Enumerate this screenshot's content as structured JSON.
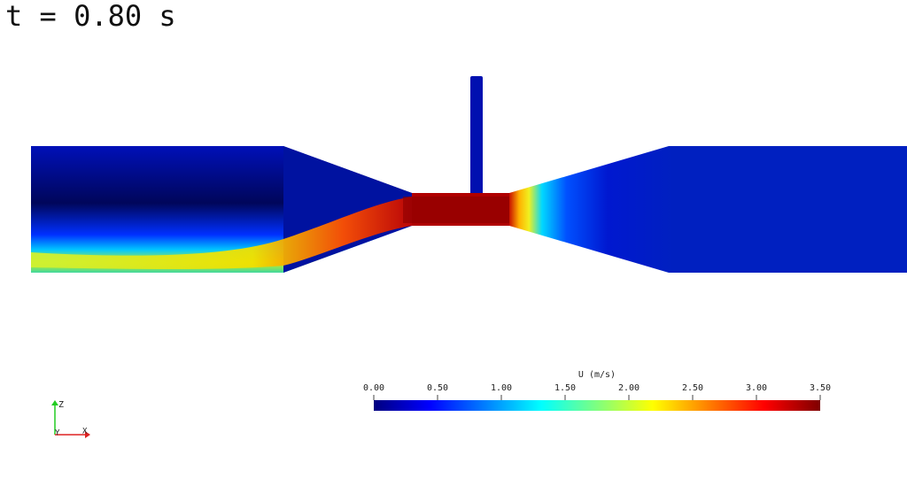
{
  "time_label": "t = 0.80 s",
  "colorbar": {
    "title": "U (m/s)",
    "lim": [
      0,
      3.5
    ],
    "ticks": [
      {
        "value": 0,
        "label": "0.00"
      },
      {
        "value": 0.5,
        "label": "0.50"
      },
      {
        "value": 1,
        "label": "1.00"
      },
      {
        "value": 1.5,
        "label": "1.50"
      },
      {
        "value": 2,
        "label": "2.00"
      },
      {
        "value": 2.5,
        "label": "2.50"
      },
      {
        "value": 3,
        "label": "3.00"
      },
      {
        "value": 3.5,
        "label": "3.50"
      }
    ]
  },
  "axes": {
    "z": "Z",
    "y": "Y",
    "x": "X"
  }
}
